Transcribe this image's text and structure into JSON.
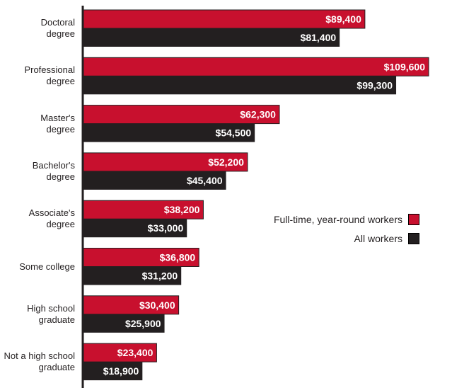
{
  "chart_data": {
    "type": "bar",
    "orientation": "horizontal",
    "title": "",
    "xlabel": "",
    "ylabel": "",
    "categories": [
      [
        "Doctoral",
        "degree"
      ],
      [
        "Professional",
        "degree"
      ],
      [
        "Master's",
        "degree"
      ],
      [
        "Bachelor's",
        "degree"
      ],
      [
        "Associate's",
        "degree"
      ],
      [
        "Some college"
      ],
      [
        "High school",
        "graduate"
      ],
      [
        "Not a high school",
        "graduate"
      ]
    ],
    "series": [
      {
        "name": "Full-time, year-round workers",
        "color": "#c8102e",
        "values": [
          89400,
          109600,
          62300,
          52200,
          38200,
          36800,
          30400,
          23400
        ],
        "labels": [
          "$89,400",
          "$109,600",
          "$62,300",
          "$52,200",
          "$38,200",
          "$36,800",
          "$30,400",
          "$23,400"
        ]
      },
      {
        "name": "All workers",
        "color": "#231f20",
        "values": [
          81400,
          99300,
          54500,
          45400,
          33000,
          31200,
          25900,
          18900
        ],
        "labels": [
          "$81,400",
          "$99,300",
          "$54,500",
          "$45,400",
          "$33,000",
          "$31,200",
          "$25,900",
          "$18,900"
        ]
      }
    ],
    "xlim": [
      0,
      109600
    ],
    "grid": false,
    "legend_position": "right"
  }
}
